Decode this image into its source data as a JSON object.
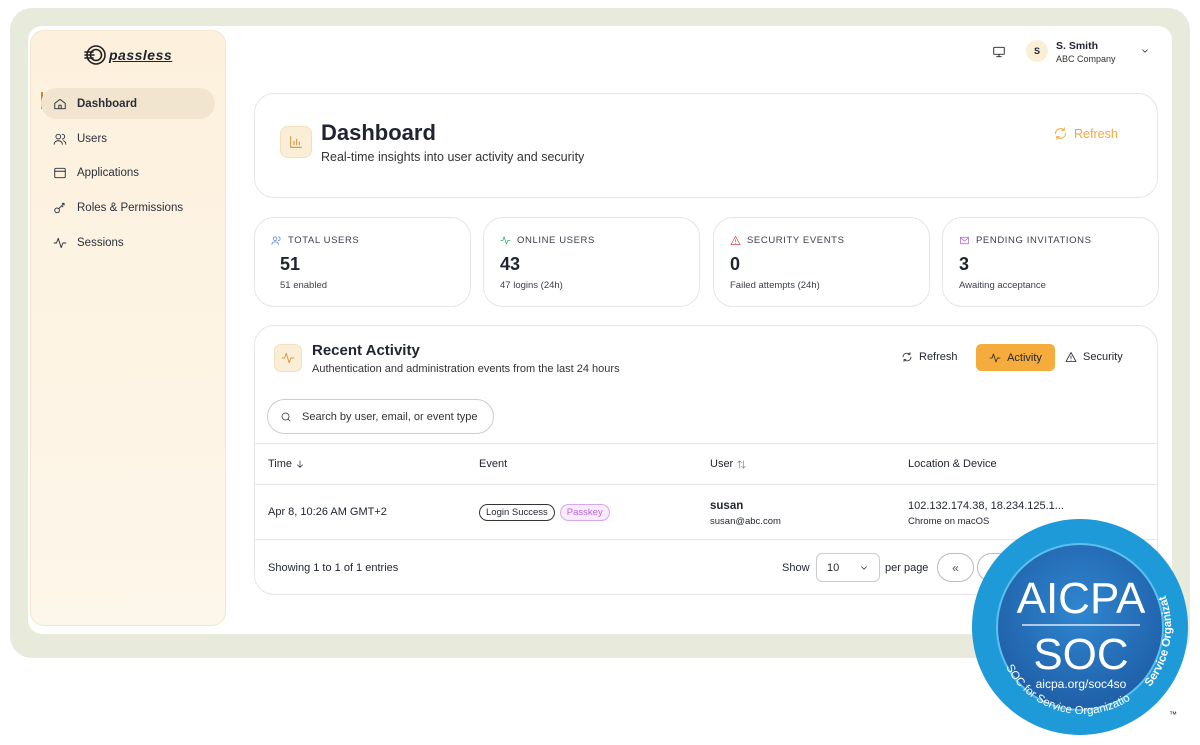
{
  "brand": "passless",
  "nav": [
    "Dashboard",
    "Users",
    "Applications",
    "Roles & Permissions",
    "Sessions"
  ],
  "user": {
    "initial": "S",
    "name": "S. Smith",
    "company": "ABC Company"
  },
  "header": {
    "title": "Dashboard",
    "subtitle": "Real-time insights into user activity and security",
    "refresh": "Refresh"
  },
  "stats": [
    {
      "label": "TOTAL USERS",
      "value": "51",
      "note": "51 enabled"
    },
    {
      "label": "ONLINE USERS",
      "value": "43",
      "note": "47 logins (24h)"
    },
    {
      "label": "SECURITY EVENTS",
      "value": "0",
      "note": "Failed attempts (24h)"
    },
    {
      "label": "PENDING INVITATIONS",
      "value": "3",
      "note": "Awaiting acceptance"
    }
  ],
  "activity": {
    "title": "Recent Activity",
    "subtitle": "Authentication and administration events from the last 24 hours",
    "buttons": [
      "Refresh",
      "Activity",
      "Security"
    ],
    "search": "Search by user, email, or event type",
    "columns": [
      "Time",
      "Event",
      "User",
      "Location & Device"
    ],
    "rows": [
      {
        "time": "Apr 8, 10:26 AM GMT+2",
        "event": "Login Success",
        "method": "Passkey",
        "user": "susan",
        "email": "susan@abc.com",
        "location": "102.132.174.38, 18.234.125.1...",
        "device": "Chrome on macOS"
      }
    ],
    "footer": {
      "summary": "Showing 1 to 1 of 1 entries",
      "show": "Show",
      "page_size": "10",
      "per_page": "per page",
      "first": "«"
    }
  },
  "badge": {
    "line1": "AICPA",
    "line2": "SOC",
    "url": "aicpa.org/soc4so",
    "arc_bottom": "SOC for Service Organizations",
    "arc_right": "Service Organizations",
    "tm": "™"
  }
}
